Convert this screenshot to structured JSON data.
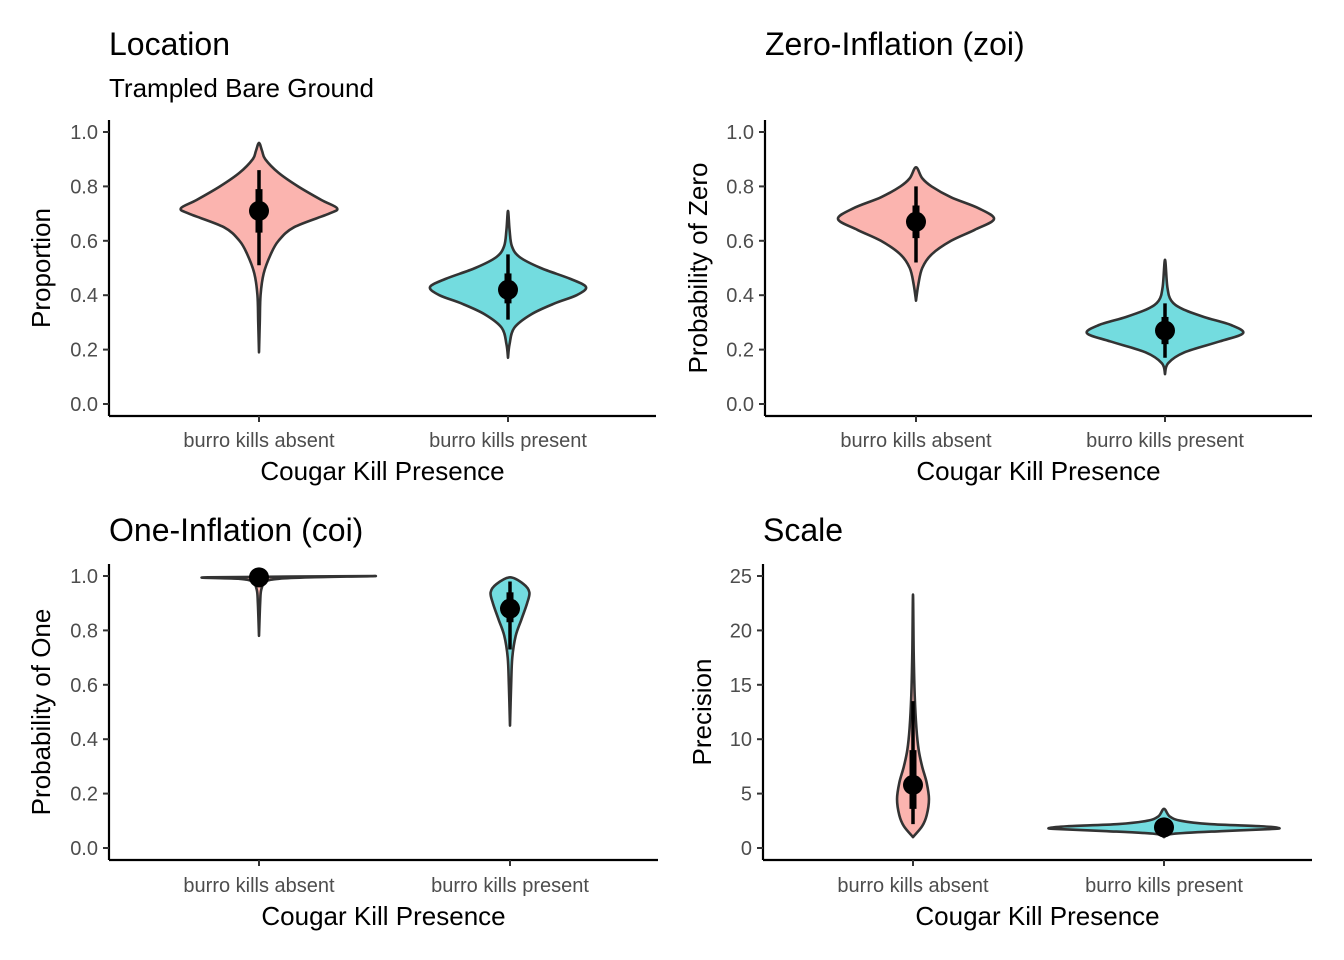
{
  "chart_data": [
    {
      "type": "violin",
      "title": "Location",
      "subtitle": "Trampled Bare Ground",
      "xlabel": "Cougar Kill Presence",
      "ylabel": "Proportion",
      "categories": [
        "burro kills absent",
        "burro kills present"
      ],
      "ylim": [
        0,
        1
      ],
      "yticks": [
        "0.0",
        "0.2",
        "0.4",
        "0.6",
        "0.8",
        "1.0"
      ],
      "yticks_values": [
        0,
        0.2,
        0.4,
        0.6,
        0.8,
        1.0
      ],
      "groups": [
        {
          "category": "burro kills absent",
          "color": "#F8766D",
          "median": 0.71,
          "interval_66": [
            0.63,
            0.79
          ],
          "interval_95": [
            0.51,
            0.86
          ],
          "min": 0.19,
          "max": 0.96,
          "mode": 0.72,
          "profile": [
            [
              0.19,
              0.0
            ],
            [
              0.3,
              0.01
            ],
            [
              0.4,
              0.02
            ],
            [
              0.48,
              0.06
            ],
            [
              0.55,
              0.15
            ],
            [
              0.6,
              0.25
            ],
            [
              0.65,
              0.45
            ],
            [
              0.7,
              0.9
            ],
            [
              0.72,
              1.0
            ],
            [
              0.75,
              0.8
            ],
            [
              0.8,
              0.5
            ],
            [
              0.85,
              0.25
            ],
            [
              0.9,
              0.08
            ],
            [
              0.93,
              0.04
            ],
            [
              0.96,
              0.0
            ]
          ]
        },
        {
          "category": "burro kills present",
          "color": "#00BFC4",
          "median": 0.42,
          "interval_66": [
            0.37,
            0.48
          ],
          "interval_95": [
            0.31,
            0.55
          ],
          "min": 0.17,
          "max": 0.71,
          "mode": 0.43,
          "profile": [
            [
              0.17,
              0.0
            ],
            [
              0.22,
              0.02
            ],
            [
              0.28,
              0.08
            ],
            [
              0.33,
              0.3
            ],
            [
              0.37,
              0.6
            ],
            [
              0.4,
              0.88
            ],
            [
              0.43,
              1.0
            ],
            [
              0.46,
              0.8
            ],
            [
              0.5,
              0.42
            ],
            [
              0.54,
              0.15
            ],
            [
              0.58,
              0.05
            ],
            [
              0.64,
              0.02
            ],
            [
              0.71,
              0.0
            ]
          ]
        }
      ]
    },
    {
      "type": "violin",
      "title": "Zero-Inflation (zoi)",
      "xlabel": "Cougar Kill Presence",
      "ylabel": "Probability of Zero",
      "categories": [
        "burro kills absent",
        "burro kills present"
      ],
      "ylim": [
        0,
        1
      ],
      "yticks": [
        "0.0",
        "0.2",
        "0.4",
        "0.6",
        "0.8",
        "1.0"
      ],
      "yticks_values": [
        0,
        0.2,
        0.4,
        0.6,
        0.8,
        1.0
      ],
      "groups": [
        {
          "category": "burro kills absent",
          "color": "#F8766D",
          "median": 0.67,
          "interval_66": [
            0.61,
            0.73
          ],
          "interval_95": [
            0.52,
            0.8
          ],
          "min": 0.38,
          "max": 0.87,
          "mode": 0.68,
          "profile": [
            [
              0.38,
              0.0
            ],
            [
              0.44,
              0.03
            ],
            [
              0.5,
              0.08
            ],
            [
              0.55,
              0.2
            ],
            [
              0.6,
              0.45
            ],
            [
              0.64,
              0.75
            ],
            [
              0.68,
              1.0
            ],
            [
              0.72,
              0.8
            ],
            [
              0.76,
              0.45
            ],
            [
              0.8,
              0.2
            ],
            [
              0.83,
              0.08
            ],
            [
              0.87,
              0.0
            ]
          ]
        },
        {
          "category": "burro kills present",
          "color": "#00BFC4",
          "median": 0.27,
          "interval_66": [
            0.22,
            0.32
          ],
          "interval_95": [
            0.17,
            0.37
          ],
          "min": 0.11,
          "max": 0.53,
          "mode": 0.26,
          "profile": [
            [
              0.11,
              0.0
            ],
            [
              0.15,
              0.04
            ],
            [
              0.19,
              0.25
            ],
            [
              0.23,
              0.7
            ],
            [
              0.26,
              1.0
            ],
            [
              0.29,
              0.85
            ],
            [
              0.32,
              0.5
            ],
            [
              0.35,
              0.22
            ],
            [
              0.38,
              0.08
            ],
            [
              0.43,
              0.03
            ],
            [
              0.53,
              0.0
            ]
          ]
        }
      ]
    },
    {
      "type": "violin",
      "title": "One-Inflation (coi)",
      "xlabel": "Cougar Kill Presence",
      "ylabel": "Probability of One",
      "categories": [
        "burro kills absent",
        "burro kills present"
      ],
      "ylim": [
        0,
        1
      ],
      "yticks": [
        "0.0",
        "0.2",
        "0.4",
        "0.6",
        "0.8",
        "1.0"
      ],
      "yticks_values": [
        0,
        0.2,
        0.4,
        0.6,
        0.8,
        1.0
      ],
      "groups": [
        {
          "category": "burro kills absent",
          "color": "#F8766D",
          "median": 0.995,
          "interval_66": [
            0.985,
            1.0
          ],
          "interval_95": [
            0.96,
            1.0
          ],
          "min": 0.78,
          "max": 1.0,
          "mode": 1.0,
          "profile": [
            [
              0.78,
              0.0
            ],
            [
              0.9,
              0.01
            ],
            [
              0.95,
              0.02
            ],
            [
              0.98,
              0.06
            ],
            [
              0.99,
              0.18
            ],
            [
              0.995,
              0.45
            ],
            [
              1.0,
              1.0
            ]
          ]
        },
        {
          "category": "burro kills present",
          "color": "#00BFC4",
          "median": 0.88,
          "interval_66": [
            0.83,
            0.94
          ],
          "interval_95": [
            0.73,
            0.98
          ],
          "min": 0.45,
          "max": 0.995,
          "mode": 0.93,
          "profile": [
            [
              0.45,
              0.0
            ],
            [
              0.6,
              0.01
            ],
            [
              0.7,
              0.02
            ],
            [
              0.78,
              0.05
            ],
            [
              0.84,
              0.1
            ],
            [
              0.9,
              0.15
            ],
            [
              0.94,
              0.17
            ],
            [
              0.97,
              0.12
            ],
            [
              0.995,
              0.0
            ]
          ]
        }
      ]
    },
    {
      "type": "violin",
      "title": "Scale",
      "xlabel": "Cougar Kill Presence",
      "ylabel": "Precision",
      "categories": [
        "burro kills absent",
        "burro kills present"
      ],
      "ylim": [
        0,
        25
      ],
      "yticks": [
        "0",
        "5",
        "10",
        "15",
        "20",
        "25"
      ],
      "yticks_values": [
        0,
        5,
        10,
        15,
        20,
        25
      ],
      "groups": [
        {
          "category": "burro kills absent",
          "color": "#F8766D",
          "median": 5.8,
          "interval_66": [
            3.6,
            9.0
          ],
          "interval_95": [
            2.2,
            13.5
          ],
          "min": 1.0,
          "max": 23.3,
          "mode": 4.6,
          "profile": [
            [
              1.0,
              0.0
            ],
            [
              2.0,
              0.08
            ],
            [
              3.0,
              0.12
            ],
            [
              4.5,
              0.14
            ],
            [
              6.0,
              0.12
            ],
            [
              7.5,
              0.08
            ],
            [
              9.0,
              0.05
            ],
            [
              11.0,
              0.03
            ],
            [
              14.0,
              0.015
            ],
            [
              18.0,
              0.006
            ],
            [
              23.3,
              0.0
            ]
          ]
        },
        {
          "category": "burro kills present",
          "color": "#00BFC4",
          "median": 1.9,
          "interval_66": [
            1.7,
            2.1
          ],
          "interval_95": [
            1.5,
            2.4
          ],
          "min": 1.0,
          "max": 3.6,
          "mode": 1.85,
          "profile": [
            [
              1.0,
              0.0
            ],
            [
              1.3,
              0.08
            ],
            [
              1.55,
              0.5
            ],
            [
              1.75,
              0.95
            ],
            [
              1.85,
              1.0
            ],
            [
              2.0,
              0.85
            ],
            [
              2.2,
              0.4
            ],
            [
              2.5,
              0.15
            ],
            [
              2.9,
              0.05
            ],
            [
              3.6,
              0.0
            ]
          ]
        }
      ]
    }
  ]
}
